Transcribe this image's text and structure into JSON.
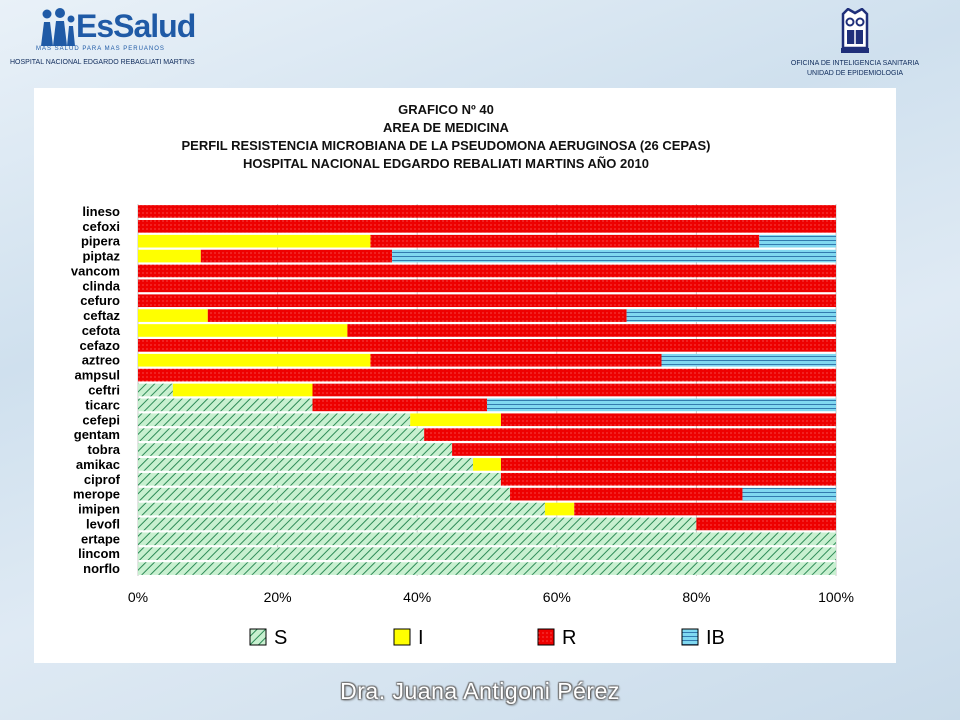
{
  "header": {
    "logo_text": "EsSalud",
    "logo_tagline": "MAS SALUD PARA MAS PERUANOS",
    "hospital_name": "HOSPITAL NACIONAL EDGARDO REBAGLIATI MARTINS",
    "office_line1": "OFICINA DE INTELIGENCIA SANITARIA",
    "office_line2": "UNIDAD DE EPIDEMIOLOGIA"
  },
  "footer": {
    "author": "Dra. Juana Antigoni Pérez"
  },
  "colors": {
    "S": "#2e8b57",
    "S_bg": "#c8f0d0",
    "I": "#ffff00",
    "R": "#ee0000",
    "IB": "#80d8f0",
    "IB_line": "#2a6fa8",
    "grid": "#c8c8c8"
  },
  "chart_data": {
    "type": "bar",
    "orientation": "horizontal",
    "stacked": "percent",
    "title_lines": [
      "GRAFICO   Nº  40",
      "AREA DE  MEDICINA",
      "PERFIL RESISTENCIA MICROBIANA DE LA PSEUDOMONA AERUGINOSA (26 CEPAS)",
      "HOSPITAL NACIONAL EDGARDO REBALIATI MARTINS   AÑO 2010"
    ],
    "categories": [
      "lineso",
      "cefoxi",
      "pipera",
      "piptaz",
      "vancom",
      "clinda",
      "cefuro",
      "ceftaz",
      "cefota",
      "cefazo",
      "aztreo",
      "ampsul",
      "ceftri",
      "ticarc",
      "cefepi",
      "gentam",
      "tobra",
      "amikac",
      "ciprof",
      "merope",
      "imipen",
      "levofl",
      "ertape",
      "lincom",
      "norflo"
    ],
    "series": [
      {
        "name": "S",
        "values": [
          0,
          0,
          0,
          0,
          0,
          0,
          0,
          0,
          0,
          0,
          0,
          0,
          5,
          25,
          39,
          41,
          45,
          48,
          52,
          53.3,
          58.3,
          80,
          100,
          100,
          100
        ]
      },
      {
        "name": "I",
        "values": [
          0,
          0,
          33.3,
          9,
          0,
          0,
          0,
          10,
          30,
          0,
          33.3,
          0,
          20,
          0,
          13,
          0,
          0,
          4,
          0,
          0,
          4.2,
          0,
          0,
          0,
          0
        ]
      },
      {
        "name": "R",
        "values": [
          100,
          100,
          55.7,
          27.4,
          100,
          100,
          100,
          60,
          70,
          100,
          41.7,
          100,
          75,
          25,
          48,
          59,
          55,
          48,
          48,
          33.3,
          37.5,
          20,
          0,
          0,
          0
        ]
      },
      {
        "name": "IB",
        "values": [
          0,
          0,
          11,
          63.6,
          0,
          0,
          0,
          30,
          0,
          0,
          25,
          0,
          0,
          50,
          0,
          0,
          0,
          0,
          0,
          13.4,
          0,
          0,
          0,
          0,
          0
        ]
      }
    ],
    "x_ticks": [
      "0%",
      "20%",
      "40%",
      "60%",
      "80%",
      "100%"
    ],
    "xlim": [
      0,
      100
    ],
    "grid": true,
    "legend": [
      "S",
      "I",
      "R",
      "IB"
    ],
    "legend_position": "bottom"
  }
}
